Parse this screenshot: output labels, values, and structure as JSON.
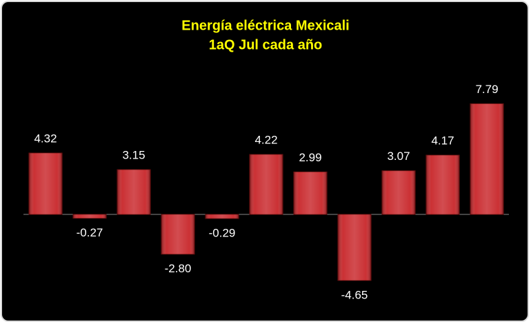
{
  "chart_data": {
    "type": "bar",
    "title": "Energía eléctrica Mexicali",
    "subtitle": "1aQ Jul cada año",
    "categories": [
      null,
      null,
      null,
      null,
      null,
      null,
      null,
      null,
      null,
      null,
      null
    ],
    "values": [
      4.32,
      -0.27,
      3.15,
      -2.8,
      -0.29,
      4.22,
      2.99,
      -4.65,
      3.07,
      4.17,
      7.79
    ],
    "value_labels": [
      "4.32",
      "-0.27",
      "3.15",
      "-2.80",
      "-0.29",
      "4.22",
      "2.99",
      "-4.65",
      "3.07",
      "4.17",
      "7.79"
    ],
    "color": "#c8262a",
    "ylim": [
      -6,
      10
    ]
  }
}
